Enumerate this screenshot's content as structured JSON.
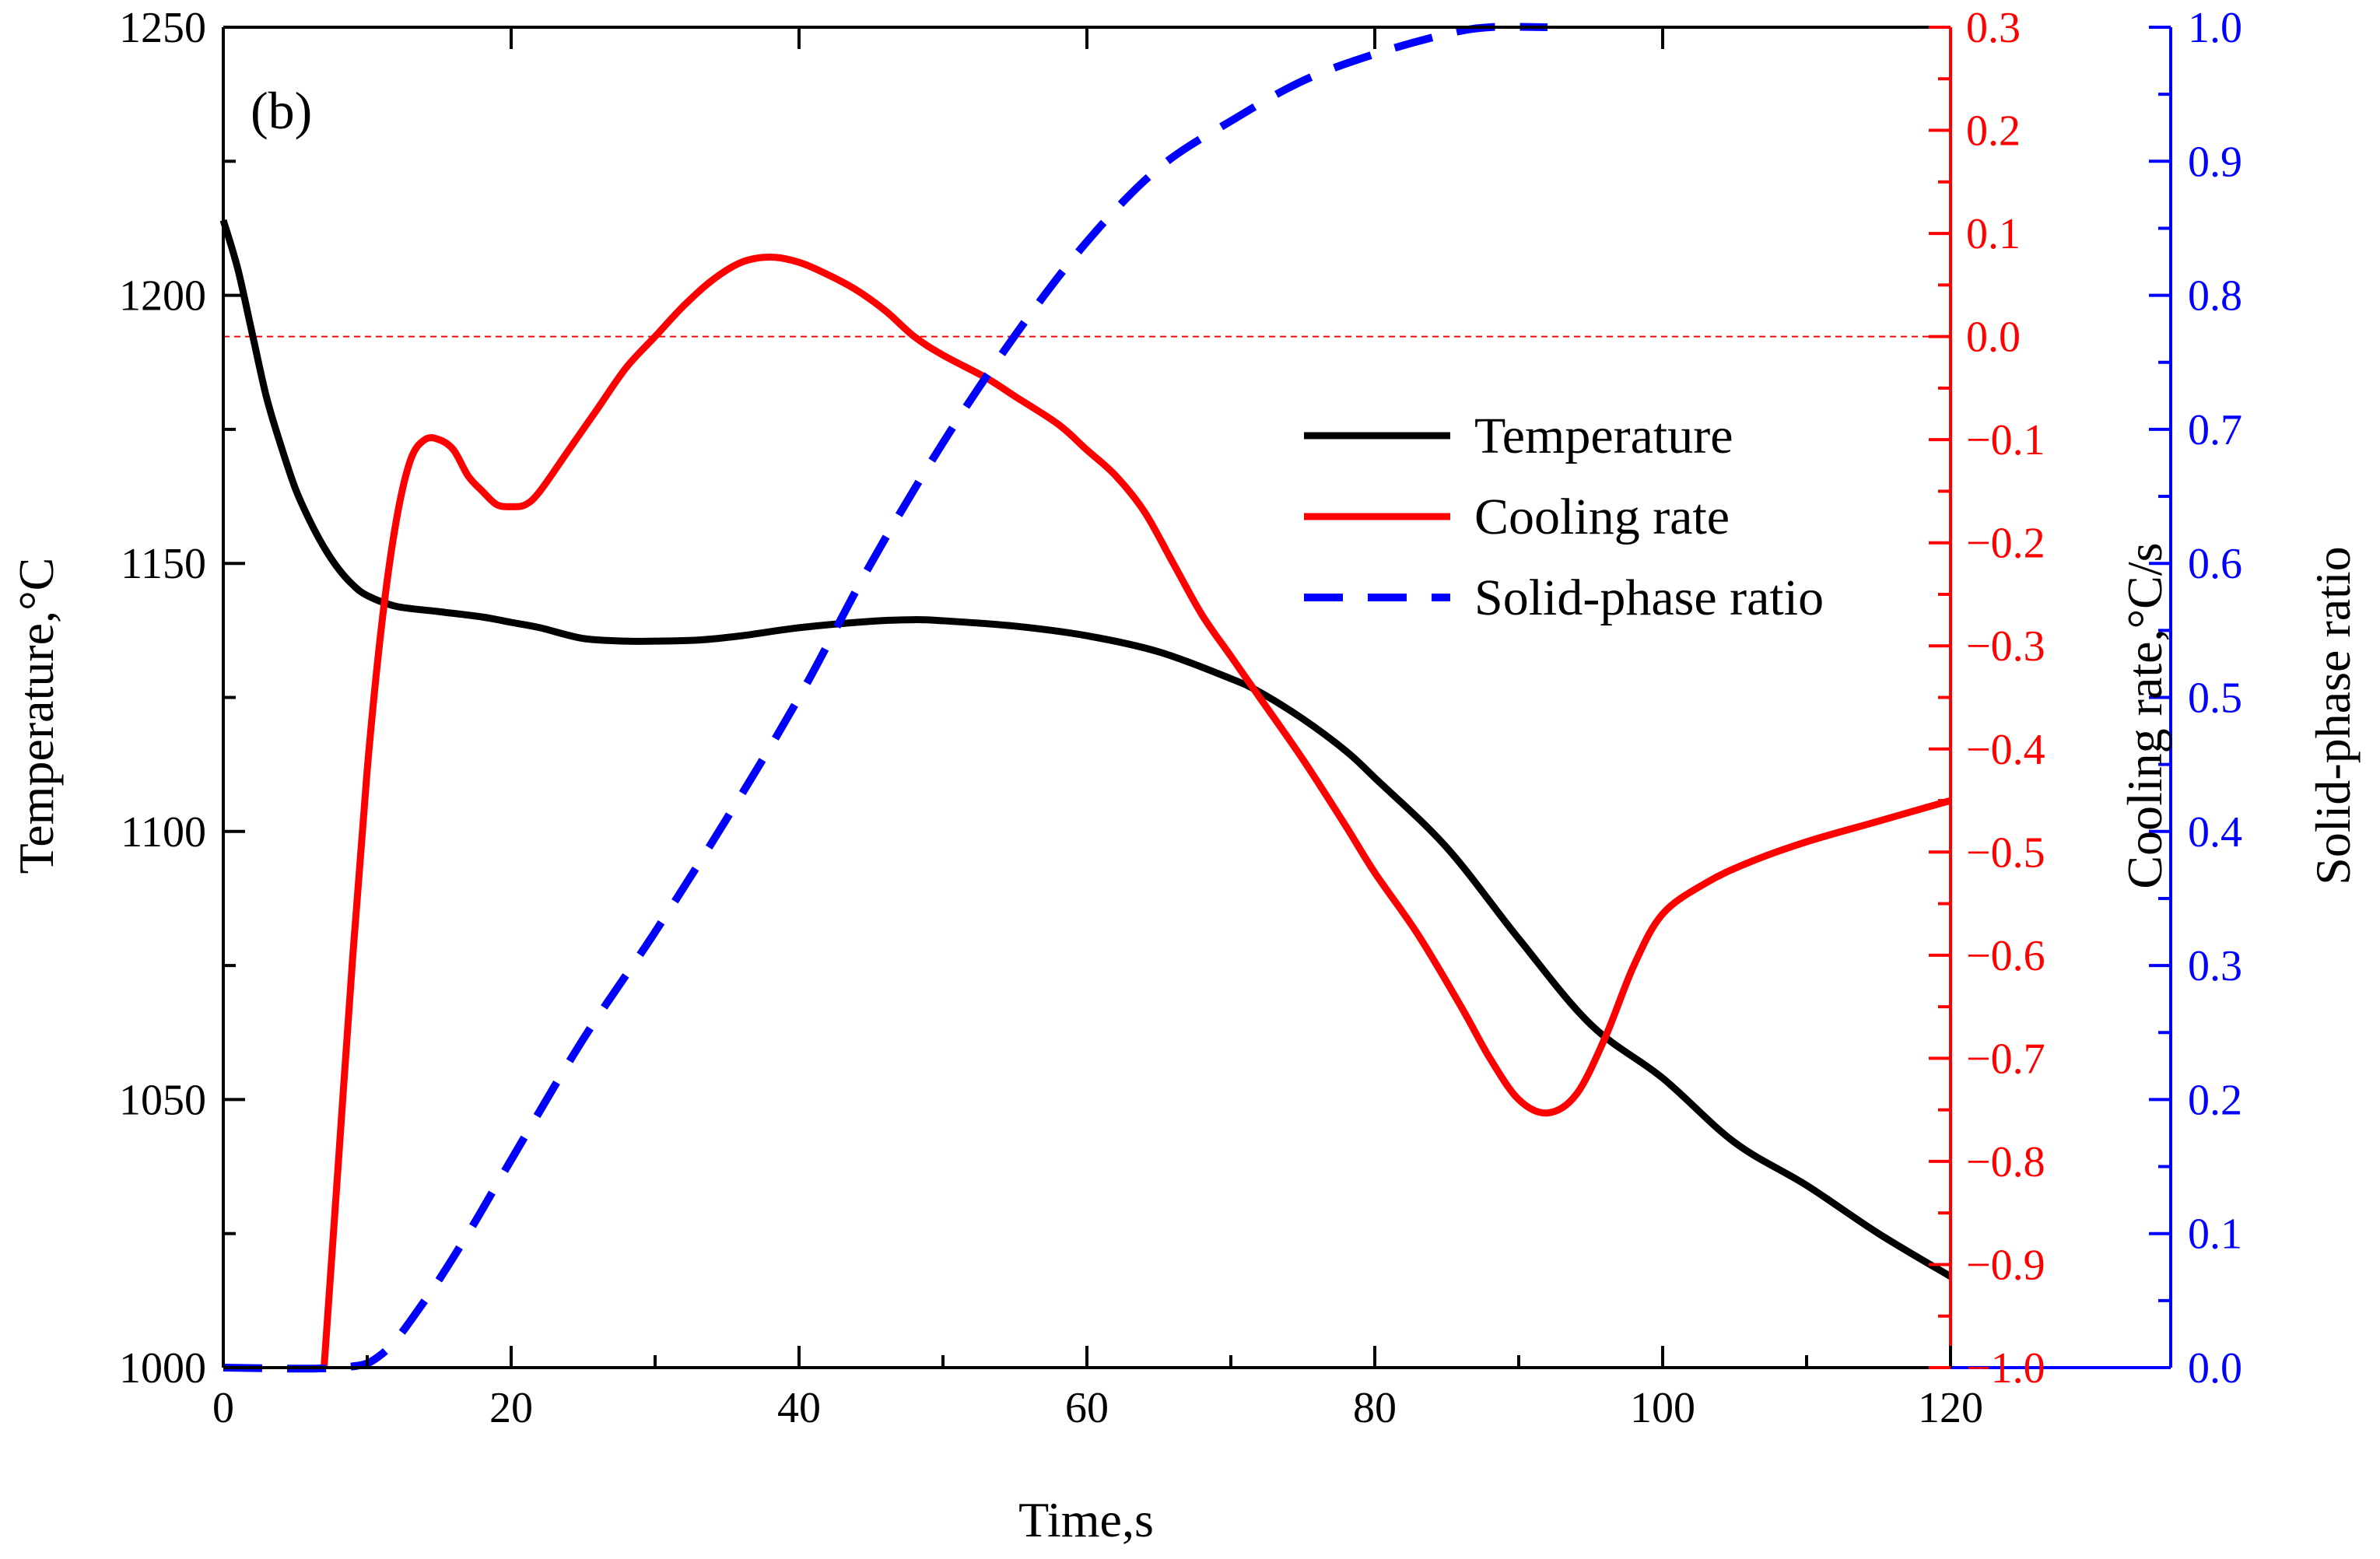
{
  "chart_data": {
    "type": "line",
    "panel_label": "(b)",
    "title": "",
    "xlabel": "Time,s",
    "xlim": [
      0,
      120
    ],
    "x_ticks": [
      "0",
      "20",
      "40",
      "60",
      "80",
      "100",
      "120"
    ],
    "y_axes": [
      {
        "id": "temperature",
        "label": "Temperature,°C",
        "side": "left",
        "color": "#000000",
        "lim": [
          1000,
          1250
        ],
        "ticks": [
          "1000",
          "1050",
          "1100",
          "1150",
          "1200",
          "1250"
        ]
      },
      {
        "id": "cooling",
        "label": "Cooling rate,°C/s",
        "side": "right",
        "color": "#ff0000",
        "lim": [
          -1.0,
          0.3
        ],
        "ticks": [
          "−1.0",
          "−0.9",
          "−0.8",
          "−0.7",
          "−0.6",
          "−0.5",
          "−0.4",
          "−0.3",
          "−0.2",
          "−0.1",
          "0.0",
          "0.1",
          "0.2",
          "0.3"
        ]
      },
      {
        "id": "solid",
        "label": "Solid-phase ratio",
        "side": "right-outer",
        "color": "#0000ff",
        "lim": [
          0.0,
          1.0
        ],
        "ticks": [
          "0.0",
          "0.1",
          "0.2",
          "0.3",
          "0.4",
          "0.5",
          "0.6",
          "0.7",
          "0.8",
          "0.9",
          "1.0"
        ]
      }
    ],
    "reference_line": {
      "axis": "cooling",
      "value": 0.0,
      "style": "dashed",
      "color": "#ff0000"
    },
    "legend": {
      "placement": "right-center",
      "entries": [
        "Temperature",
        "Cooling rate",
        "Solid-phase ratio"
      ]
    },
    "series": [
      {
        "name": "Temperature",
        "axis": "temperature",
        "color": "#000000",
        "style": "solid",
        "points": [
          [
            0,
            1214
          ],
          [
            1,
            1205
          ],
          [
            2,
            1193
          ],
          [
            3,
            1181
          ],
          [
            4,
            1172
          ],
          [
            5,
            1164
          ],
          [
            6,
            1158
          ],
          [
            7,
            1153
          ],
          [
            8,
            1149
          ],
          [
            9,
            1146
          ],
          [
            10,
            1144
          ],
          [
            12,
            1142
          ],
          [
            15,
            1141
          ],
          [
            18,
            1140
          ],
          [
            20,
            1139
          ],
          [
            22,
            1138
          ],
          [
            25,
            1136
          ],
          [
            28,
            1135.5
          ],
          [
            30,
            1135.5
          ],
          [
            33,
            1135.7
          ],
          [
            36,
            1136.5
          ],
          [
            40,
            1138
          ],
          [
            45,
            1139.2
          ],
          [
            48,
            1139.5
          ],
          [
            50,
            1139.3
          ],
          [
            55,
            1138.3
          ],
          [
            60,
            1136.5
          ],
          [
            65,
            1133.5
          ],
          [
            70,
            1128.5
          ],
          [
            72,
            1126
          ],
          [
            75,
            1121
          ],
          [
            78,
            1115
          ],
          [
            80,
            1110
          ],
          [
            85,
            1097
          ],
          [
            90,
            1080
          ],
          [
            95,
            1064
          ],
          [
            100,
            1054
          ],
          [
            105,
            1042
          ],
          [
            110,
            1034
          ],
          [
            115,
            1025
          ],
          [
            120,
            1017
          ]
        ]
      },
      {
        "name": "Cooling rate",
        "axis": "cooling",
        "color": "#ff0000",
        "style": "solid",
        "points": [
          [
            7,
            -1.0
          ],
          [
            8,
            -0.8
          ],
          [
            9,
            -0.6
          ],
          [
            10,
            -0.42
          ],
          [
            11,
            -0.28
          ],
          [
            12,
            -0.18
          ],
          [
            13,
            -0.12
          ],
          [
            14,
            -0.1
          ],
          [
            15,
            -0.1
          ],
          [
            16,
            -0.11
          ],
          [
            17,
            -0.135
          ],
          [
            18,
            -0.15
          ],
          [
            19,
            -0.163
          ],
          [
            20,
            -0.165
          ],
          [
            21,
            -0.163
          ],
          [
            22,
            -0.15
          ],
          [
            24,
            -0.11
          ],
          [
            26,
            -0.07
          ],
          [
            28,
            -0.03
          ],
          [
            30,
            0.0
          ],
          [
            32,
            0.03
          ],
          [
            34,
            0.055
          ],
          [
            36,
            0.072
          ],
          [
            38,
            0.077
          ],
          [
            40,
            0.072
          ],
          [
            42,
            0.06
          ],
          [
            44,
            0.045
          ],
          [
            46,
            0.025
          ],
          [
            48,
            0.0
          ],
          [
            50,
            -0.018
          ],
          [
            53,
            -0.04
          ],
          [
            55,
            -0.058
          ],
          [
            58,
            -0.085
          ],
          [
            60,
            -0.11
          ],
          [
            62,
            -0.135
          ],
          [
            64,
            -0.17
          ],
          [
            66,
            -0.22
          ],
          [
            68,
            -0.27
          ],
          [
            70,
            -0.31
          ],
          [
            72,
            -0.35
          ],
          [
            75,
            -0.41
          ],
          [
            78,
            -0.475
          ],
          [
            80,
            -0.52
          ],
          [
            83,
            -0.58
          ],
          [
            86,
            -0.65
          ],
          [
            88,
            -0.7
          ],
          [
            90,
            -0.74
          ],
          [
            92,
            -0.753
          ],
          [
            94,
            -0.735
          ],
          [
            96,
            -0.68
          ],
          [
            98,
            -0.61
          ],
          [
            100,
            -0.56
          ],
          [
            103,
            -0.53
          ],
          [
            106,
            -0.51
          ],
          [
            110,
            -0.49
          ],
          [
            115,
            -0.47
          ],
          [
            120,
            -0.45
          ]
        ]
      },
      {
        "name": "Solid-phase ratio",
        "axis": "solid",
        "color": "#0000ff",
        "style": "dashed",
        "points": [
          [
            0,
            0.0
          ],
          [
            8,
            0.0
          ],
          [
            11,
            0.01
          ],
          [
            14,
            0.05
          ],
          [
            17,
            0.1
          ],
          [
            20,
            0.155
          ],
          [
            25,
            0.245
          ],
          [
            30,
            0.325
          ],
          [
            35,
            0.41
          ],
          [
            40,
            0.5
          ],
          [
            45,
            0.6
          ],
          [
            50,
            0.69
          ],
          [
            55,
            0.77
          ],
          [
            60,
            0.84
          ],
          [
            65,
            0.895
          ],
          [
            70,
            0.93
          ],
          [
            75,
            0.96
          ],
          [
            80,
            0.98
          ],
          [
            85,
            0.995
          ],
          [
            88,
            1.0
          ],
          [
            92,
            1.0
          ]
        ]
      }
    ]
  }
}
